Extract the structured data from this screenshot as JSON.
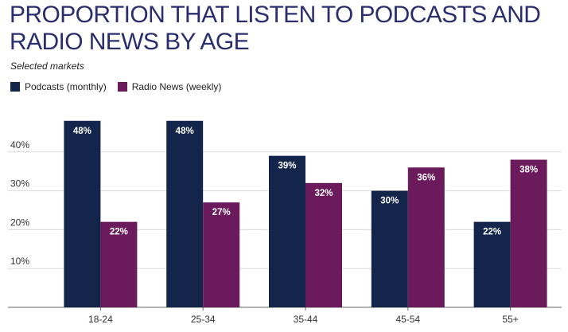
{
  "title": "PROPORTION THAT LISTEN TO PODCASTS AND RADIO NEWS BY AGE",
  "subtitle": "Selected markets",
  "colors": {
    "podcasts": "#13254a",
    "radio": "#6b1a5c",
    "grid": "#dcdcdc",
    "axis": "#666666"
  },
  "chart_data": {
    "type": "bar",
    "categories": [
      "18-24",
      "25-34",
      "35-44",
      "45-54",
      "55+"
    ],
    "series": [
      {
        "name": "Podcasts (monthly)",
        "values": [
          48,
          48,
          39,
          30,
          22
        ],
        "labels": [
          "48%",
          "48%",
          "39%",
          "30%",
          "22%"
        ]
      },
      {
        "name": "Radio News (weekly)",
        "values": [
          22,
          27,
          32,
          36,
          38
        ],
        "labels": [
          "22%",
          "27%",
          "32%",
          "36%",
          "38%"
        ]
      }
    ],
    "yticks": [
      10,
      20,
      30,
      40
    ],
    "ytick_labels": [
      "10%",
      "20%",
      "30%",
      "40%"
    ],
    "ylim": [
      0,
      50
    ],
    "grid": true,
    "legend_position": "top-left"
  }
}
